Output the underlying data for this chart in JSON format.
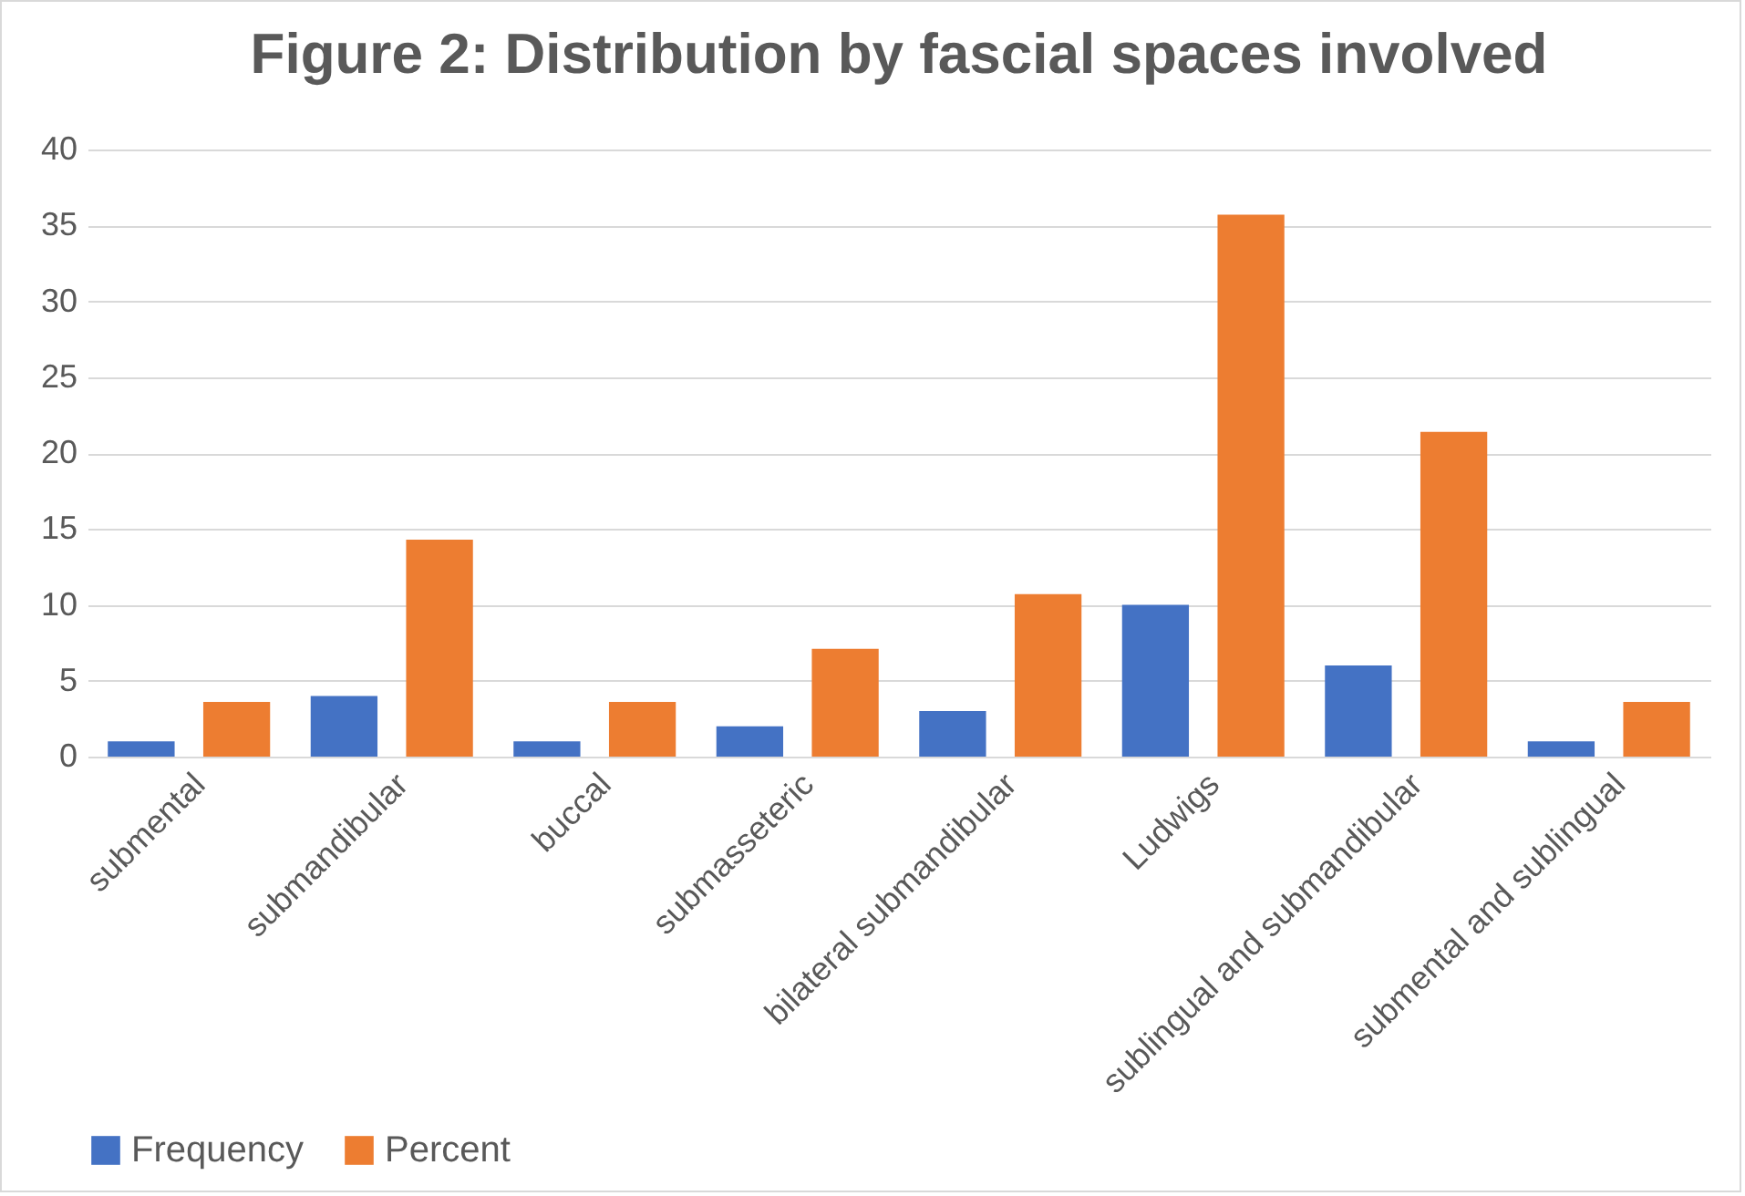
{
  "chart_data": {
    "type": "bar",
    "title": "Figure 2: Distribution by fascial spaces involved",
    "categories": [
      "submental",
      "submandibular",
      "buccal",
      "submasseteric",
      "bilateral submandibular",
      "Ludwigs",
      "sublingual and submandibular",
      "submental and sublingual"
    ],
    "series": [
      {
        "name": "Frequency",
        "color": "#4472c4",
        "values": [
          1,
          4,
          1,
          2,
          3,
          10,
          6,
          1
        ]
      },
      {
        "name": "Percent",
        "color": "#ed7d31",
        "values": [
          3.6,
          14.3,
          3.6,
          7.1,
          10.7,
          35.7,
          21.4,
          3.6
        ]
      }
    ],
    "ylim": [
      0,
      40
    ],
    "yticks": [
      0,
      5,
      10,
      15,
      20,
      25,
      30,
      35,
      40
    ],
    "grid": "y",
    "legend": "bottom"
  }
}
